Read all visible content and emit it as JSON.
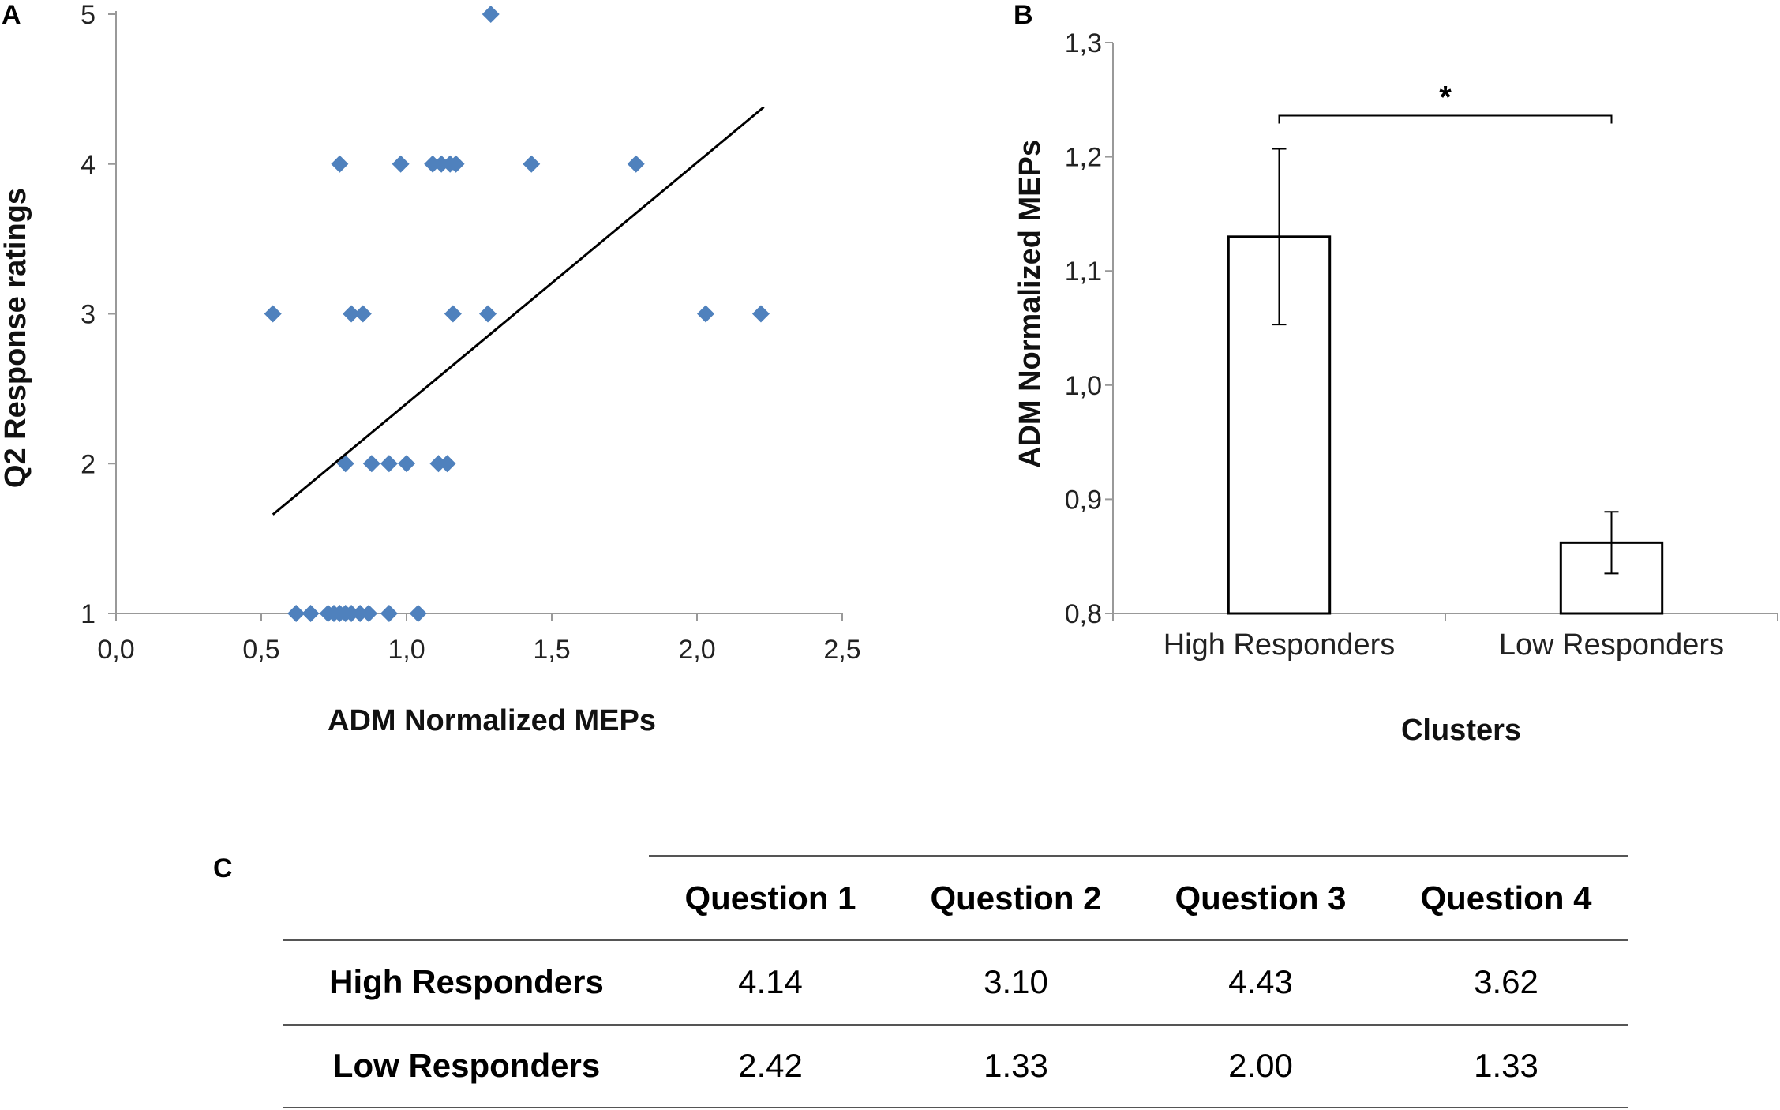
{
  "panels": {
    "a": "A",
    "b": "B",
    "c": "C"
  },
  "chart_data": [
    {
      "type": "scatter",
      "title": "",
      "xlabel": "ADM Normalized MEPs",
      "ylabel": "Q2 Response ratings",
      "xlim": [
        0,
        2.5
      ],
      "ylim": [
        1,
        5
      ],
      "xticks": [
        "0,0",
        "0,5",
        "1,0",
        "1,5",
        "2,0",
        "2,5"
      ],
      "xtick_values": [
        0,
        0.5,
        1.0,
        1.5,
        2.0,
        2.5
      ],
      "yticks": [
        "1",
        "2",
        "3",
        "4",
        "5"
      ],
      "ytick_values": [
        1,
        2,
        3,
        4,
        5
      ],
      "point_color": "#4F81BD",
      "points": [
        {
          "x": 1.29,
          "y": 5
        },
        {
          "x": 0.77,
          "y": 4
        },
        {
          "x": 0.98,
          "y": 4
        },
        {
          "x": 1.09,
          "y": 4
        },
        {
          "x": 1.12,
          "y": 4
        },
        {
          "x": 1.15,
          "y": 4
        },
        {
          "x": 1.17,
          "y": 4
        },
        {
          "x": 1.43,
          "y": 4
        },
        {
          "x": 1.79,
          "y": 4
        },
        {
          "x": 0.54,
          "y": 3
        },
        {
          "x": 0.81,
          "y": 3
        },
        {
          "x": 0.85,
          "y": 3
        },
        {
          "x": 1.16,
          "y": 3
        },
        {
          "x": 1.28,
          "y": 3
        },
        {
          "x": 2.03,
          "y": 3
        },
        {
          "x": 2.22,
          "y": 3
        },
        {
          "x": 0.79,
          "y": 2
        },
        {
          "x": 0.88,
          "y": 2
        },
        {
          "x": 0.94,
          "y": 2
        },
        {
          "x": 1.0,
          "y": 2
        },
        {
          "x": 1.11,
          "y": 2
        },
        {
          "x": 1.14,
          "y": 2
        },
        {
          "x": 0.62,
          "y": 1
        },
        {
          "x": 0.67,
          "y": 1
        },
        {
          "x": 0.73,
          "y": 1
        },
        {
          "x": 0.75,
          "y": 1
        },
        {
          "x": 0.77,
          "y": 1
        },
        {
          "x": 0.79,
          "y": 1
        },
        {
          "x": 0.81,
          "y": 1
        },
        {
          "x": 0.84,
          "y": 1
        },
        {
          "x": 0.87,
          "y": 1
        },
        {
          "x": 0.94,
          "y": 1
        },
        {
          "x": 1.04,
          "y": 1
        }
      ],
      "trendline": {
        "x": [
          0.54,
          2.23
        ],
        "y": [
          1.66,
          4.38
        ]
      }
    },
    {
      "type": "bar",
      "title": "",
      "xlabel": "Clusters",
      "ylabel": "ADM Normalized MEPs",
      "categories": [
        "High Responders",
        "Low Responders"
      ],
      "values": [
        1.13,
        0.862
      ],
      "errors": [
        0.077,
        0.027
      ],
      "ylim": [
        0.8,
        1.3
      ],
      "yticks": [
        "0,8",
        "0,9",
        "1,0",
        "1,1",
        "1,2",
        "1,3"
      ],
      "ytick_values": [
        0.8,
        0.9,
        1.0,
        1.1,
        1.2,
        1.3
      ],
      "bar_fill": "#ffffff",
      "bar_stroke": "#000000",
      "significance": {
        "label": "*",
        "between": [
          0,
          1
        ],
        "level": 1.236
      }
    }
  ],
  "table": {
    "headers": [
      "",
      "Question 1",
      "Question 2",
      "Question 3",
      "Question 4"
    ],
    "rows": [
      {
        "label": "High Responders",
        "values": [
          "4.14",
          "3.10",
          "4.43",
          "3.62"
        ]
      },
      {
        "label": "Low Responders",
        "values": [
          "2.42",
          "1.33",
          "2.00",
          "1.33"
        ]
      }
    ]
  }
}
